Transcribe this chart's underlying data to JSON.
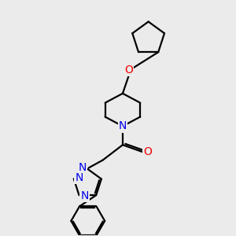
{
  "bg_color": "#ebebeb",
  "bond_color": "#000000",
  "N_color": "#0000ee",
  "O_color": "#ee0000",
  "line_width": 1.6,
  "font_size": 8.5,
  "xlim": [
    0,
    10
  ],
  "ylim": [
    0,
    10
  ]
}
